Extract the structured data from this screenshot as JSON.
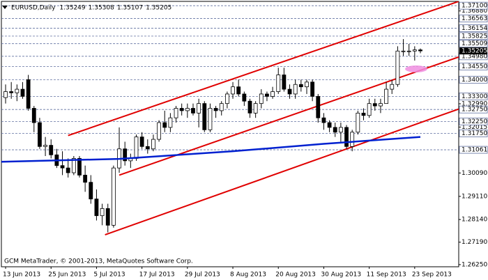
{
  "chart_data": {
    "type": "candlestick",
    "symbol": "EURUSD,Daily",
    "last_ohlc": [
      1.35249,
      1.35308,
      1.35107,
      1.35205
    ],
    "footer": "GCM MetaTrader, © 2001-2013, MetaQuotes Software Corp.",
    "categories": [
      "13 Jun 2013",
      null,
      null,
      null,
      null,
      null,
      null,
      null,
      "25 Jun 2013",
      null,
      null,
      null,
      null,
      null,
      null,
      null,
      "5 Jul 2013",
      null,
      null,
      null,
      null,
      null,
      null,
      null,
      "17 Jul 2013",
      null,
      null,
      null,
      null,
      null,
      null,
      null,
      "29 Jul 2013",
      null,
      null,
      null,
      null,
      null,
      null,
      null,
      "8 Aug 2013",
      null,
      null,
      null,
      null,
      null,
      null,
      null,
      "20 Aug 2013",
      null,
      null,
      null,
      null,
      null,
      null,
      null,
      "30 Aug 2013",
      null,
      null,
      null,
      null,
      null,
      null,
      null,
      "11 Sep 2013",
      null,
      null,
      null,
      null,
      null,
      null,
      null,
      "23 Sep 2013",
      null
    ],
    "open": [
      1.3325,
      1.335,
      1.3345,
      1.336,
      1.34,
      1.328,
      1.322,
      1.312,
      1.3125,
      1.3085,
      1.304,
      1.303,
      1.301,
      1.307,
      1.3,
      1.297,
      1.29,
      1.283,
      1.286,
      1.279,
      1.303,
      1.311,
      1.306,
      1.307,
      1.316,
      1.312,
      1.311,
      1.315,
      1.322,
      1.32,
      1.324,
      1.328,
      1.327,
      1.328,
      1.326,
      1.33,
      1.319,
      1.328,
      1.327,
      1.33,
      1.334,
      1.337,
      1.334,
      1.331,
      1.326,
      1.33,
      1.334,
      1.333,
      1.335,
      1.342,
      1.336,
      1.334,
      1.338,
      1.337,
      1.339,
      1.333,
      1.324,
      1.322,
      1.32,
      1.318,
      1.32,
      1.312,
      1.318,
      1.326,
      1.325,
      1.33,
      1.329,
      1.33,
      1.336,
      1.338,
      1.352,
      1.352,
      1.352,
      1.35249
    ],
    "high": [
      1.338,
      1.339,
      1.338,
      1.339,
      1.342,
      1.329,
      1.324,
      1.316,
      1.315,
      1.311,
      1.31,
      1.307,
      1.308,
      1.308,
      1.304,
      1.3,
      1.294,
      1.288,
      1.288,
      1.304,
      1.32,
      1.314,
      1.309,
      1.317,
      1.318,
      1.315,
      1.317,
      1.323,
      1.327,
      1.326,
      1.329,
      1.33,
      1.33,
      1.33,
      1.332,
      1.331,
      1.33,
      1.329,
      1.331,
      1.335,
      1.339,
      1.34,
      1.335,
      1.332,
      1.331,
      1.336,
      1.335,
      1.337,
      1.345,
      1.345,
      1.338,
      1.34,
      1.34,
      1.34,
      1.34,
      1.334,
      1.326,
      1.323,
      1.322,
      1.322,
      1.321,
      1.319,
      1.327,
      1.328,
      1.332,
      1.332,
      1.332,
      1.339,
      1.34,
      1.354,
      1.357,
      1.355,
      1.354,
      1.35308
    ],
    "low": [
      1.33,
      1.332,
      1.331,
      1.332,
      1.327,
      1.318,
      1.311,
      1.308,
      1.307,
      1.303,
      1.3,
      1.299,
      1.3,
      1.299,
      1.293,
      1.288,
      1.281,
      1.279,
      1.276,
      1.278,
      1.301,
      1.304,
      1.303,
      1.306,
      1.311,
      1.309,
      1.31,
      1.314,
      1.318,
      1.318,
      1.322,
      1.325,
      1.324,
      1.325,
      1.32,
      1.318,
      1.318,
      1.324,
      1.325,
      1.328,
      1.332,
      1.333,
      1.329,
      1.324,
      1.324,
      1.328,
      1.331,
      1.332,
      1.334,
      1.335,
      1.332,
      1.332,
      1.335,
      1.334,
      1.331,
      1.322,
      1.319,
      1.318,
      1.316,
      1.314,
      1.311,
      1.31,
      1.317,
      1.323,
      1.324,
      1.327,
      1.326,
      1.33,
      1.334,
      1.337,
      1.35,
      1.35,
      1.348,
      1.35107
    ],
    "close": [
      1.335,
      1.3345,
      1.336,
      1.333,
      1.328,
      1.322,
      1.312,
      1.3125,
      1.3085,
      1.304,
      1.303,
      1.301,
      1.307,
      1.3,
      1.297,
      1.29,
      1.283,
      1.286,
      1.279,
      1.303,
      1.311,
      1.306,
      1.307,
      1.316,
      1.312,
      1.311,
      1.315,
      1.322,
      1.32,
      1.324,
      1.328,
      1.327,
      1.328,
      1.326,
      1.33,
      1.319,
      1.328,
      1.327,
      1.33,
      1.334,
      1.337,
      1.334,
      1.331,
      1.326,
      1.33,
      1.334,
      1.333,
      1.335,
      1.342,
      1.336,
      1.334,
      1.338,
      1.337,
      1.339,
      1.333,
      1.324,
      1.322,
      1.32,
      1.318,
      1.32,
      1.312,
      1.318,
      1.326,
      1.325,
      1.33,
      1.329,
      1.33,
      1.336,
      1.338,
      1.352,
      1.352,
      1.352,
      1.35249,
      1.35205
    ],
    "xlim": [
      -0.74,
      79.75
    ],
    "ylim": [
      1.2616,
      1.3728
    ],
    "yticks": [
      {
        "value": 1.3688,
        "label": "1.36880"
      },
      {
        "value": 1.3299,
        "label": "1.32990"
      },
      {
        "value": 1.32015,
        "label": "1.32015"
      },
      {
        "value": 1.3009,
        "label": "1.30090"
      },
      {
        "value": 1.2911,
        "label": "1.29110"
      },
      {
        "value": 1.2814,
        "label": "1.28140"
      },
      {
        "value": 1.2719,
        "label": "1.27190"
      },
      {
        "value": 1.2625,
        "label": "1.26250"
      }
    ],
    "hlines": [
      {
        "value": 1.371,
        "label": "1.37100"
      },
      {
        "value": 1.36563,
        "label": "1.36563"
      },
      {
        "value": 1.36154,
        "label": "1.36154"
      },
      {
        "value": 1.35825,
        "label": "1.35825"
      },
      {
        "value": 1.35509,
        "label": "1.35509"
      },
      {
        "value": 1.3498,
        "label": "1.34980"
      },
      {
        "value": 1.3455,
        "label": "1.34550"
      },
      {
        "value": 1.34,
        "label": "1.34000"
      },
      {
        "value": 1.333,
        "label": "1.33300"
      },
      {
        "value": 1.3275,
        "label": "1.32750"
      },
      {
        "value": 1.3225,
        "label": "1.32250"
      },
      {
        "value": 1.3175,
        "label": "1.31750"
      },
      {
        "value": 1.31061,
        "label": "1.31061"
      }
    ],
    "current_price": {
      "value": 1.35205,
      "label": "1.35205"
    },
    "trendlines": [
      {
        "color": "#e00000",
        "points": [
          [
            11,
            1.3166
          ],
          [
            79.75,
            1.3728
          ]
        ]
      },
      {
        "color": "#e00000",
        "points": [
          [
            20,
            1.3
          ],
          [
            79.75,
            1.3495
          ]
        ]
      },
      {
        "color": "#e00000",
        "points": [
          [
            17.5,
            1.275
          ],
          [
            79.75,
            1.3277
          ]
        ]
      }
    ],
    "ma": {
      "color": "#0020d0",
      "points": [
        [
          -0.74,
          1.3056
        ],
        [
          20,
          1.3068
        ],
        [
          40,
          1.31
        ],
        [
          56,
          1.3131
        ],
        [
          73,
          1.316
        ]
      ]
    },
    "bull_color": "#ffffff",
    "bear_color": "#000000",
    "hline_color": "#6070a0"
  }
}
